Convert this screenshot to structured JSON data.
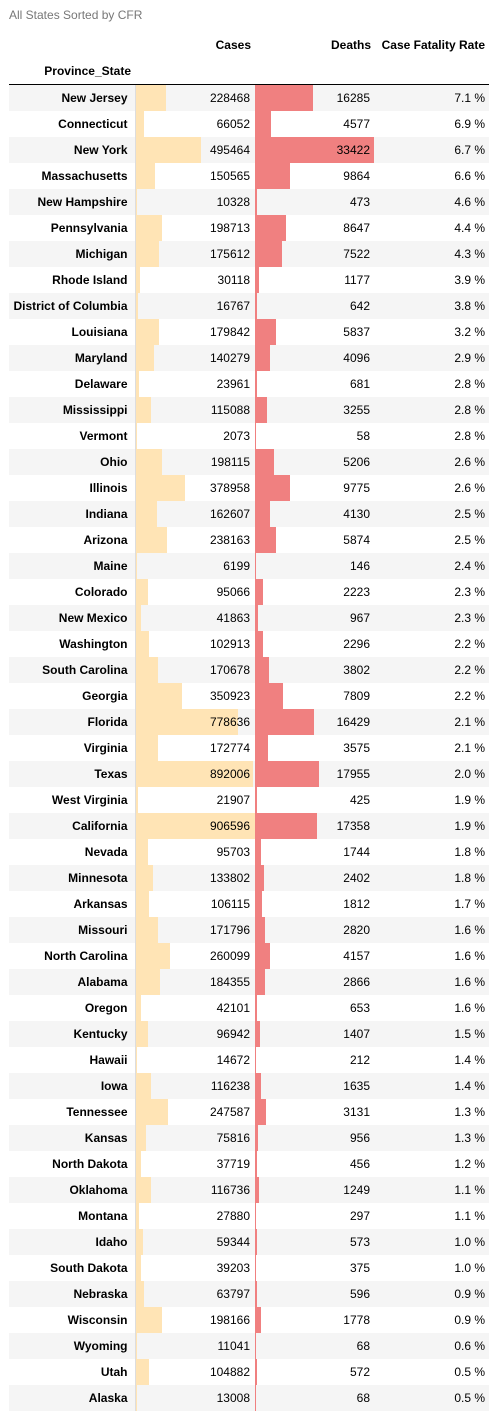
{
  "caption": "All States Sorted by CFR",
  "chart_data": {
    "type": "table",
    "title": "All States Sorted by CFR",
    "index_name": "Province_State",
    "columns": [
      "Cases",
      "Deaths",
      "Case Fatality Rate"
    ],
    "bar_colors": {
      "Cases": "#ffe4b5",
      "Deaths": "#f08080"
    },
    "cases_max": 906596,
    "deaths_max": 33422,
    "rows": [
      {
        "state": "New Jersey",
        "cases": 228468,
        "deaths": 16285,
        "cfr": "7.1 %"
      },
      {
        "state": "Connecticut",
        "cases": 66052,
        "deaths": 4577,
        "cfr": "6.9 %"
      },
      {
        "state": "New York",
        "cases": 495464,
        "deaths": 33422,
        "cfr": "6.7 %"
      },
      {
        "state": "Massachusetts",
        "cases": 150565,
        "deaths": 9864,
        "cfr": "6.6 %"
      },
      {
        "state": "New Hampshire",
        "cases": 10328,
        "deaths": 473,
        "cfr": "4.6 %"
      },
      {
        "state": "Pennsylvania",
        "cases": 198713,
        "deaths": 8647,
        "cfr": "4.4 %"
      },
      {
        "state": "Michigan",
        "cases": 175612,
        "deaths": 7522,
        "cfr": "4.3 %"
      },
      {
        "state": "Rhode Island",
        "cases": 30118,
        "deaths": 1177,
        "cfr": "3.9 %"
      },
      {
        "state": "District of Columbia",
        "cases": 16767,
        "deaths": 642,
        "cfr": "3.8 %"
      },
      {
        "state": "Louisiana",
        "cases": 179842,
        "deaths": 5837,
        "cfr": "3.2 %"
      },
      {
        "state": "Maryland",
        "cases": 140279,
        "deaths": 4096,
        "cfr": "2.9 %"
      },
      {
        "state": "Delaware",
        "cases": 23961,
        "deaths": 681,
        "cfr": "2.8 %"
      },
      {
        "state": "Mississippi",
        "cases": 115088,
        "deaths": 3255,
        "cfr": "2.8 %"
      },
      {
        "state": "Vermont",
        "cases": 2073,
        "deaths": 58,
        "cfr": "2.8 %"
      },
      {
        "state": "Ohio",
        "cases": 198115,
        "deaths": 5206,
        "cfr": "2.6 %"
      },
      {
        "state": "Illinois",
        "cases": 378958,
        "deaths": 9775,
        "cfr": "2.6 %"
      },
      {
        "state": "Indiana",
        "cases": 162607,
        "deaths": 4130,
        "cfr": "2.5 %"
      },
      {
        "state": "Arizona",
        "cases": 238163,
        "deaths": 5874,
        "cfr": "2.5 %"
      },
      {
        "state": "Maine",
        "cases": 6199,
        "deaths": 146,
        "cfr": "2.4 %"
      },
      {
        "state": "Colorado",
        "cases": 95066,
        "deaths": 2223,
        "cfr": "2.3 %"
      },
      {
        "state": "New Mexico",
        "cases": 41863,
        "deaths": 967,
        "cfr": "2.3 %"
      },
      {
        "state": "Washington",
        "cases": 102913,
        "deaths": 2296,
        "cfr": "2.2 %"
      },
      {
        "state": "South Carolina",
        "cases": 170678,
        "deaths": 3802,
        "cfr": "2.2 %"
      },
      {
        "state": "Georgia",
        "cases": 350923,
        "deaths": 7809,
        "cfr": "2.2 %"
      },
      {
        "state": "Florida",
        "cases": 778636,
        "deaths": 16429,
        "cfr": "2.1 %"
      },
      {
        "state": "Virginia",
        "cases": 172774,
        "deaths": 3575,
        "cfr": "2.1 %"
      },
      {
        "state": "Texas",
        "cases": 892006,
        "deaths": 17955,
        "cfr": "2.0 %"
      },
      {
        "state": "West Virginia",
        "cases": 21907,
        "deaths": 425,
        "cfr": "1.9 %"
      },
      {
        "state": "California",
        "cases": 906596,
        "deaths": 17358,
        "cfr": "1.9 %"
      },
      {
        "state": "Nevada",
        "cases": 95703,
        "deaths": 1744,
        "cfr": "1.8 %"
      },
      {
        "state": "Minnesota",
        "cases": 133802,
        "deaths": 2402,
        "cfr": "1.8 %"
      },
      {
        "state": "Arkansas",
        "cases": 106115,
        "deaths": 1812,
        "cfr": "1.7 %"
      },
      {
        "state": "Missouri",
        "cases": 171796,
        "deaths": 2820,
        "cfr": "1.6 %"
      },
      {
        "state": "North Carolina",
        "cases": 260099,
        "deaths": 4157,
        "cfr": "1.6 %"
      },
      {
        "state": "Alabama",
        "cases": 184355,
        "deaths": 2866,
        "cfr": "1.6 %"
      },
      {
        "state": "Oregon",
        "cases": 42101,
        "deaths": 653,
        "cfr": "1.6 %"
      },
      {
        "state": "Kentucky",
        "cases": 96942,
        "deaths": 1407,
        "cfr": "1.5 %"
      },
      {
        "state": "Hawaii",
        "cases": 14672,
        "deaths": 212,
        "cfr": "1.4 %"
      },
      {
        "state": "Iowa",
        "cases": 116238,
        "deaths": 1635,
        "cfr": "1.4 %"
      },
      {
        "state": "Tennessee",
        "cases": 247587,
        "deaths": 3131,
        "cfr": "1.3 %"
      },
      {
        "state": "Kansas",
        "cases": 75816,
        "deaths": 956,
        "cfr": "1.3 %"
      },
      {
        "state": "North Dakota",
        "cases": 37719,
        "deaths": 456,
        "cfr": "1.2 %"
      },
      {
        "state": "Oklahoma",
        "cases": 116736,
        "deaths": 1249,
        "cfr": "1.1 %"
      },
      {
        "state": "Montana",
        "cases": 27880,
        "deaths": 297,
        "cfr": "1.1 %"
      },
      {
        "state": "Idaho",
        "cases": 59344,
        "deaths": 573,
        "cfr": "1.0 %"
      },
      {
        "state": "South Dakota",
        "cases": 39203,
        "deaths": 375,
        "cfr": "1.0 %"
      },
      {
        "state": "Nebraska",
        "cases": 63797,
        "deaths": 596,
        "cfr": "0.9 %"
      },
      {
        "state": "Wisconsin",
        "cases": 198166,
        "deaths": 1778,
        "cfr": "0.9 %"
      },
      {
        "state": "Wyoming",
        "cases": 11041,
        "deaths": 68,
        "cfr": "0.6 %"
      },
      {
        "state": "Utah",
        "cases": 104882,
        "deaths": 572,
        "cfr": "0.5 %"
      },
      {
        "state": "Alaska",
        "cases": 13008,
        "deaths": 68,
        "cfr": "0.5 %"
      }
    ]
  }
}
